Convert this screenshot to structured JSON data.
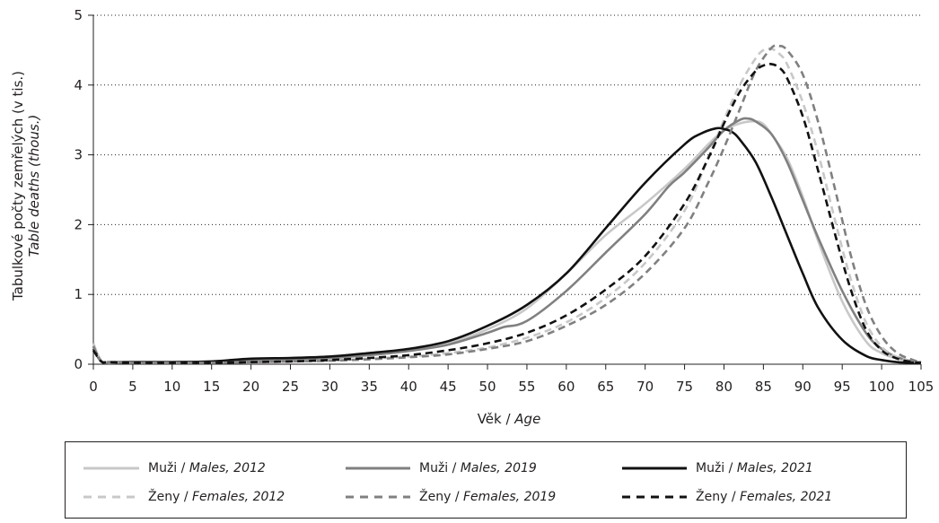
{
  "chart_data": {
    "type": "line",
    "ylabel_cz": "Tabulkové počty zemřelých (v tis.)",
    "ylabel_en": "Table deaths (thous.)",
    "xlabel_cz": "Věk / ",
    "xlabel_en": "Age",
    "xlim": [
      0,
      105
    ],
    "ylim": [
      0,
      5
    ],
    "xticks": [
      0,
      5,
      10,
      15,
      20,
      25,
      30,
      35,
      40,
      45,
      50,
      55,
      60,
      65,
      70,
      75,
      80,
      85,
      90,
      95,
      100,
      105
    ],
    "yticks": [
      0,
      1,
      2,
      3,
      4,
      5
    ],
    "grid": "horizontal dotted",
    "legend_position": "bottom",
    "series": [
      {
        "name": "Muži / Males, 2012",
        "name_cz": "Muži / ",
        "name_en": "Males, 2012",
        "color": "#c8c8c8",
        "dash": "solid",
        "x": [
          0,
          1,
          2,
          5,
          10,
          15,
          20,
          25,
          30,
          35,
          40,
          45,
          50,
          55,
          60,
          65,
          70,
          75,
          78,
          80,
          82,
          84,
          85,
          86,
          88,
          90,
          92,
          95,
          98,
          100,
          102,
          104,
          105
        ],
        "y": [
          0.28,
          0.05,
          0.03,
          0.03,
          0.03,
          0.04,
          0.07,
          0.08,
          0.1,
          0.14,
          0.2,
          0.3,
          0.5,
          0.8,
          1.3,
          1.85,
          2.3,
          2.8,
          3.15,
          3.35,
          3.45,
          3.48,
          3.44,
          3.3,
          2.95,
          2.4,
          1.75,
          0.9,
          0.33,
          0.16,
          0.08,
          0.04,
          0.03
        ]
      },
      {
        "name": "Muži / Males, 2019",
        "name_cz": "Muži / ",
        "name_en": "Males, 2019",
        "color": "#808080",
        "dash": "solid",
        "x": [
          0,
          1,
          2,
          5,
          10,
          15,
          20,
          25,
          30,
          35,
          40,
          45,
          50,
          52,
          55,
          60,
          65,
          70,
          73,
          75,
          78,
          80,
          82,
          83,
          84,
          86,
          88,
          90,
          92,
          95,
          98,
          100,
          102,
          104,
          105
        ],
        "y": [
          0.25,
          0.04,
          0.03,
          0.03,
          0.03,
          0.04,
          0.06,
          0.07,
          0.09,
          0.13,
          0.19,
          0.28,
          0.45,
          0.53,
          0.62,
          1.05,
          1.6,
          2.15,
          2.55,
          2.75,
          3.1,
          3.35,
          3.5,
          3.52,
          3.48,
          3.3,
          2.9,
          2.35,
          1.8,
          1.05,
          0.45,
          0.22,
          0.1,
          0.04,
          0.03
        ]
      },
      {
        "name": "Muži / Males, 2021",
        "name_cz": "Muži / ",
        "name_en": "Males, 2021",
        "color": "#111111",
        "dash": "solid",
        "x": [
          0,
          1,
          2,
          5,
          10,
          15,
          20,
          25,
          30,
          35,
          40,
          45,
          50,
          55,
          60,
          65,
          70,
          75,
          77,
          79,
          80,
          81,
          82,
          84,
          86,
          88,
          90,
          92,
          95,
          98,
          100,
          102,
          104,
          105
        ],
        "y": [
          0.22,
          0.04,
          0.03,
          0.03,
          0.03,
          0.04,
          0.08,
          0.09,
          0.11,
          0.16,
          0.22,
          0.33,
          0.55,
          0.85,
          1.3,
          1.95,
          2.6,
          3.15,
          3.3,
          3.38,
          3.37,
          3.33,
          3.22,
          2.9,
          2.4,
          1.85,
          1.3,
          0.8,
          0.35,
          0.12,
          0.06,
          0.03,
          0.02,
          0.02
        ]
      },
      {
        "name": "Ženy / Females, 2012",
        "name_cz": "Ženy / ",
        "name_en": "Females, 2012",
        "color": "#c8c8c8",
        "dash": "dashed",
        "x": [
          0,
          1,
          2,
          5,
          10,
          15,
          20,
          25,
          30,
          35,
          40,
          45,
          50,
          55,
          60,
          65,
          70,
          75,
          78,
          80,
          82,
          84,
          85,
          86,
          87,
          88,
          90,
          92,
          94,
          96,
          98,
          100,
          102,
          104,
          105
        ],
        "y": [
          0.3,
          0.04,
          0.03,
          0.02,
          0.02,
          0.02,
          0.03,
          0.04,
          0.05,
          0.08,
          0.11,
          0.16,
          0.24,
          0.38,
          0.6,
          0.95,
          1.45,
          2.2,
          2.95,
          3.5,
          4.0,
          4.38,
          4.5,
          4.52,
          4.45,
          4.3,
          3.75,
          3.0,
          2.1,
          1.25,
          0.6,
          0.25,
          0.1,
          0.04,
          0.02
        ]
      },
      {
        "name": "Ženy / Females, 2019",
        "name_cz": "Ženy / ",
        "name_en": "Females, 2019",
        "color": "#808080",
        "dash": "dashed",
        "x": [
          0,
          1,
          2,
          5,
          10,
          15,
          20,
          25,
          30,
          35,
          40,
          45,
          50,
          55,
          60,
          65,
          70,
          75,
          78,
          80,
          82,
          84,
          86,
          87,
          88,
          90,
          92,
          94,
          96,
          98,
          100,
          102,
          104,
          105
        ],
        "y": [
          0.26,
          0.04,
          0.03,
          0.02,
          0.02,
          0.02,
          0.03,
          0.04,
          0.05,
          0.07,
          0.1,
          0.14,
          0.22,
          0.33,
          0.55,
          0.85,
          1.3,
          1.95,
          2.6,
          3.1,
          3.65,
          4.2,
          4.53,
          4.56,
          4.5,
          4.15,
          3.45,
          2.55,
          1.6,
          0.85,
          0.4,
          0.16,
          0.06,
          0.03
        ]
      },
      {
        "name": "Ženy / Females, 2021",
        "name_cz": "Ženy / ",
        "name_en": "Females, 2021",
        "color": "#111111",
        "dash": "dashed",
        "x": [
          0,
          1,
          2,
          5,
          10,
          15,
          20,
          25,
          30,
          35,
          40,
          45,
          50,
          55,
          60,
          65,
          70,
          75,
          78,
          80,
          82,
          84,
          85,
          86,
          87,
          88,
          90,
          92,
          94,
          96,
          98,
          100,
          102,
          104,
          105
        ],
        "y": [
          0.2,
          0.04,
          0.03,
          0.02,
          0.02,
          0.02,
          0.03,
          0.04,
          0.06,
          0.09,
          0.13,
          0.2,
          0.3,
          0.45,
          0.7,
          1.07,
          1.55,
          2.3,
          2.95,
          3.45,
          3.9,
          4.2,
          4.28,
          4.3,
          4.25,
          4.1,
          3.55,
          2.75,
          1.9,
          1.1,
          0.5,
          0.2,
          0.08,
          0.03,
          0.02
        ]
      }
    ]
  }
}
